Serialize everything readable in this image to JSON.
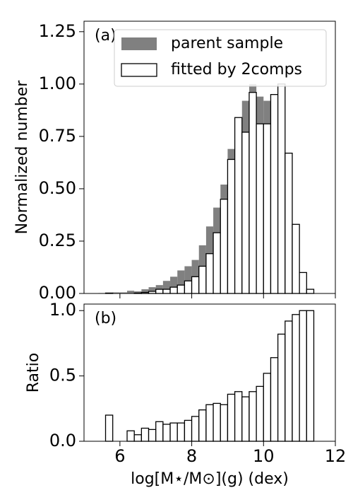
{
  "chart_data": [
    {
      "type": "histogram",
      "label": "(a)",
      "ylabel": "Normalized number",
      "bins": [
        5.2,
        5.4,
        5.6,
        5.8,
        6.0,
        6.2,
        6.4,
        6.6,
        6.8,
        7.0,
        7.2,
        7.4,
        7.6,
        7.8,
        8.0,
        8.2,
        8.4,
        8.6,
        8.8,
        9.0,
        9.2,
        9.4,
        9.6,
        9.8,
        10.0,
        10.2,
        10.4,
        10.6,
        10.8,
        11.0,
        11.2,
        11.4,
        11.6
      ],
      "series": [
        {
          "name": "parent sample",
          "color": "#808080",
          "edgecolor": "none",
          "values": [
            0,
            0.002,
            0.003,
            0.005,
            0.005,
            0.013,
            0.01,
            0.02,
            0.03,
            0.04,
            0.06,
            0.08,
            0.11,
            0.13,
            0.16,
            0.23,
            0.32,
            0.41,
            0.52,
            0.69,
            0.79,
            0.92,
            1.0,
            0.94,
            0.92,
            0.86,
            0.62,
            0.3,
            0.11,
            0.04,
            0.01,
            0
          ]
        },
        {
          "name": "fitted by 2comps",
          "color": "#ffffff",
          "edgecolor": "#000000",
          "values": [
            0,
            0,
            0.002,
            0,
            0,
            0,
            0.002,
            0.005,
            0.01,
            0.02,
            0.02,
            0.03,
            0.04,
            0.06,
            0.08,
            0.13,
            0.19,
            0.29,
            0.45,
            0.64,
            0.84,
            0.77,
            0.96,
            0.81,
            0.81,
            0.95,
            1.0,
            0.67,
            0.33,
            0.1,
            0.02,
            0
          ]
        }
      ],
      "xlim": [
        5,
        12
      ],
      "xticks": [
        6,
        8,
        10,
        12
      ],
      "xticklabels": false,
      "ylim": [
        0,
        1.3
      ],
      "yticks": [
        {
          "value": 0,
          "label": "0.00"
        },
        {
          "value": 0.25,
          "label": "0.25"
        },
        {
          "value": 0.5,
          "label": "0.50"
        },
        {
          "value": 0.75,
          "label": "0.75"
        },
        {
          "value": 1,
          "label": "1.00"
        },
        {
          "value": 1.25,
          "label": "1.25"
        }
      ],
      "legend": "upper right"
    },
    {
      "type": "histogram",
      "label": "(b)",
      "ylabel": "Ratio",
      "xlabel": "log[M⋆/M⊙](g) (dex)",
      "bins": [
        5.6,
        5.8,
        6.0,
        6.2,
        6.4,
        6.6,
        6.8,
        7.0,
        7.2,
        7.4,
        7.6,
        7.8,
        8.0,
        8.2,
        8.4,
        8.6,
        8.8,
        9.0,
        9.2,
        9.4,
        9.6,
        9.8,
        10.0,
        10.2,
        10.4,
        10.6,
        10.8,
        11.0,
        11.2,
        11.4
      ],
      "series": [
        {
          "color": "#ffffff",
          "edgecolor": "#000000",
          "values": [
            0.2,
            0,
            0,
            0.08,
            0.05,
            0.1,
            0.09,
            0.15,
            0.13,
            0.14,
            0.14,
            0.16,
            0.19,
            0.24,
            0.28,
            0.29,
            0.28,
            0.36,
            0.38,
            0.34,
            0.38,
            0.42,
            0.52,
            0.64,
            0.82,
            0.92,
            0.97,
            1.0,
            1.0
          ]
        }
      ],
      "xlim": [
        5,
        12
      ],
      "xticks": [
        6,
        8,
        10,
        12
      ],
      "xticklabels": true,
      "ylim": [
        0,
        1.05
      ],
      "yticks": [
        {
          "value": 0,
          "label": "0.0"
        },
        {
          "value": 0.5,
          "label": "0.5"
        },
        {
          "value": 1,
          "label": "1.0"
        }
      ]
    }
  ]
}
